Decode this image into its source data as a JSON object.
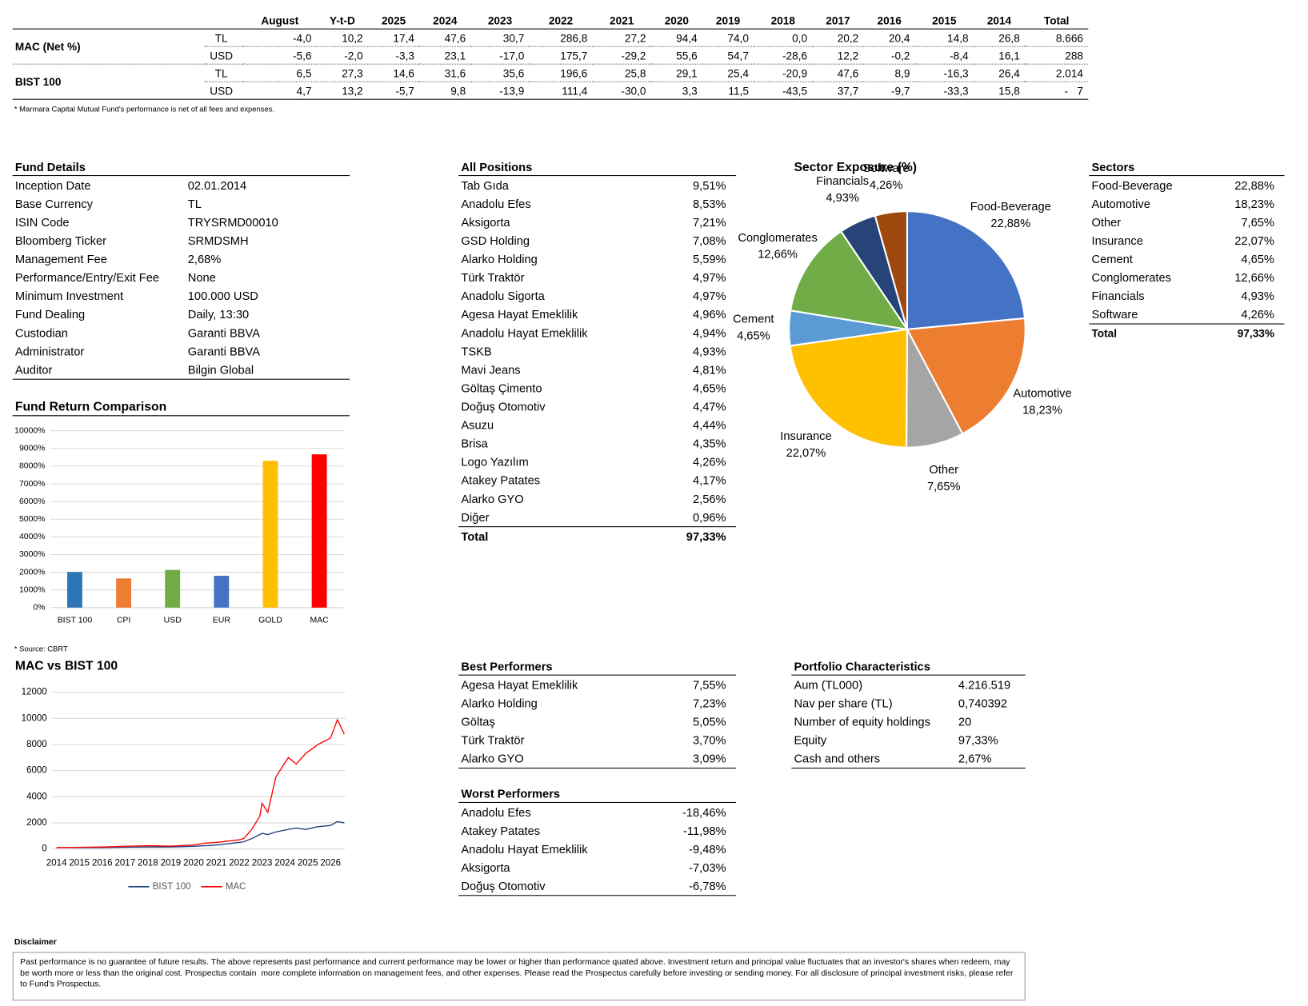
{
  "performance": {
    "columns": [
      "August",
      "Y-t-D",
      "2025",
      "2024",
      "2023",
      "2022",
      "2021",
      "2020",
      "2019",
      "2018",
      "2017",
      "2016",
      "2015",
      "2014",
      "Total"
    ],
    "groups": [
      {
        "name": "MAC (Net %)",
        "rows": [
          {
            "currency": "TL",
            "values": [
              "-4,0",
              "10,2",
              "17,4",
              "47,6",
              "30,7",
              "286,8",
              "27,2",
              "94,4",
              "74,0",
              "0,0",
              "20,2",
              "20,4",
              "14,8",
              "26,8",
              "8.666"
            ]
          },
          {
            "currency": "USD",
            "values": [
              "-5,6",
              "-2,0",
              "-3,3",
              "23,1",
              "-17,0",
              "175,7",
              "-29,2",
              "55,6",
              "54,7",
              "-28,6",
              "12,2",
              "-0,2",
              "-8,4",
              "16,1",
              "288"
            ]
          }
        ]
      },
      {
        "name": "BIST 100",
        "rows": [
          {
            "currency": "TL",
            "values": [
              "6,5",
              "27,3",
              "14,6",
              "31,6",
              "35,6",
              "196,6",
              "25,8",
              "29,1",
              "25,4",
              "-20,9",
              "47,6",
              "8,9",
              "-16,3",
              "26,4",
              "2.014"
            ]
          },
          {
            "currency": "USD",
            "values": [
              "4,7",
              "13,2",
              "-5,7",
              "9,8",
              "-13,9",
              "111,4",
              "-30,0",
              "3,3",
              "11,5",
              "-43,5",
              "37,7",
              "-9,7",
              "-33,3",
              "15,8",
              "-   7"
            ]
          }
        ]
      }
    ],
    "note": "* Marmara Capital Mutual Fund's performance is net of all fees and expenses."
  },
  "fund_details": {
    "title": "Fund Details",
    "rows": [
      [
        "Inception Date",
        "02.01.2014"
      ],
      [
        "Base Currency",
        "TL"
      ],
      [
        "ISIN Code",
        "TRYSRMD00010"
      ],
      [
        "Bloomberg Ticker",
        "SRMDSMH"
      ],
      [
        "Management Fee",
        "2,68%"
      ],
      [
        "Performance/Entry/Exit Fee",
        "None"
      ],
      [
        "Minimum Investment",
        "100.000 USD"
      ],
      [
        "Fund Dealing",
        "Daily, 13:30"
      ],
      [
        "Custodian",
        "Garanti BBVA"
      ],
      [
        "Administrator",
        "Garanti BBVA"
      ],
      [
        "Auditor",
        "Bilgin Global"
      ]
    ]
  },
  "all_positions": {
    "title": "All Positions",
    "rows": [
      [
        "Tab Gıda",
        "9,51%"
      ],
      [
        "Anadolu Efes",
        "8,53%"
      ],
      [
        "Aksigorta",
        "7,21%"
      ],
      [
        "GSD Holding",
        "7,08%"
      ],
      [
        "Alarko Holding",
        "5,59%"
      ],
      [
        "Türk Traktör",
        "4,97%"
      ],
      [
        "Anadolu Sigorta",
        "4,97%"
      ],
      [
        "Agesa Hayat Emeklilik",
        "4,96%"
      ],
      [
        "Anadolu Hayat Emeklilik",
        "4,94%"
      ],
      [
        "TSKB",
        "4,93%"
      ],
      [
        "Mavi Jeans",
        "4,81%"
      ],
      [
        "Göltaş Çimento",
        "4,65%"
      ],
      [
        "Doğuş Otomotiv",
        "4,47%"
      ],
      [
        "Asuzu",
        "4,44%"
      ],
      [
        "Brisa",
        "4,35%"
      ],
      [
        "Logo Yazılım",
        "4,26%"
      ],
      [
        "Atakey Patates",
        "4,17%"
      ],
      [
        "Alarko GYO",
        "2,56%"
      ],
      [
        "Diğer",
        "0,96%"
      ]
    ],
    "total": [
      "Total",
      "97,33%"
    ]
  },
  "sectors": {
    "title": "Sectors",
    "rows": [
      [
        "Food-Beverage",
        "22,88%"
      ],
      [
        "Automotive",
        "18,23%"
      ],
      [
        "Other",
        "7,65%"
      ],
      [
        "Insurance",
        "22,07%"
      ],
      [
        "Cement",
        "4,65%"
      ],
      [
        "Conglomerates",
        "12,66%"
      ],
      [
        "Financials",
        "4,93%"
      ],
      [
        "Software",
        "4,26%"
      ]
    ],
    "total": [
      "Total",
      "97,33%"
    ]
  },
  "best_performers": {
    "title": "Best Performers",
    "rows": [
      [
        "Agesa Hayat Emeklilik",
        "7,55%"
      ],
      [
        "Alarko Holding",
        "7,23%"
      ],
      [
        "Göltaş",
        "5,05%"
      ],
      [
        "Türk Traktör",
        "3,70%"
      ],
      [
        "Alarko GYO",
        "3,09%"
      ]
    ]
  },
  "worst_performers": {
    "title": "Worst Performers",
    "rows": [
      [
        "Anadolu Efes",
        "-18,46%"
      ],
      [
        "Atakey Patates",
        "-11,98%"
      ],
      [
        "Anadolu Hayat Emeklilik",
        "-9,48%"
      ],
      [
        "Aksigorta",
        "-7,03%"
      ],
      [
        "Doğuş Otomotiv",
        "-6,78%"
      ]
    ]
  },
  "portfolio_characteristics": {
    "title": "Portfolio Characteristics",
    "rows": [
      [
        "Aum (TL000)",
        "4.216.519"
      ],
      [
        "Nav per share (TL)",
        "0,740392"
      ],
      [
        "Number of equity holdings",
        "20"
      ],
      [
        "Equity",
        "97,33%"
      ],
      [
        "Cash and others",
        "2,67%"
      ]
    ]
  },
  "source_note": "* Source: CBRT",
  "disclaimer": {
    "title": "Disclaimer",
    "text": "Past performance is no guarantee of future results. The above represents past performance and current performance may be lower or higher than performance quated above. Investment return and principal value fluctuates that an investor's shares when redeem, may be worth more or less than the original cost. Prospectus contain  more complete information on management fees, and other expenses. Please read the Prospectus carefully before investing or sending money. For all disclosure of principal investment risks, please refer to Fund's Prospectus."
  },
  "chart_data": [
    {
      "type": "bar",
      "title": "Fund Return Comparison",
      "categories": [
        "BIST 100",
        "CPI",
        "USD",
        "EUR",
        "GOLD",
        "MAC"
      ],
      "values": [
        2014,
        1650,
        2130,
        1800,
        8300,
        8666
      ],
      "colors": [
        "#2e75b6",
        "#ed7d31",
        "#70ad47",
        "#4472c4",
        "#ffc000",
        "#ff0000"
      ],
      "ylim": [
        0,
        10000
      ],
      "yticks": [
        {
          "value": 0,
          "label": "0%"
        },
        {
          "value": 1000,
          "label": "1000%"
        },
        {
          "value": 2000,
          "label": "2000%"
        },
        {
          "value": 3000,
          "label": "3000%"
        },
        {
          "value": 4000,
          "label": "4000%"
        },
        {
          "value": 5000,
          "label": "5000%"
        },
        {
          "value": 6000,
          "label": "6000%"
        },
        {
          "value": 7000,
          "label": "7000%"
        },
        {
          "value": 8000,
          "label": "8000%"
        },
        {
          "value": 9000,
          "label": "9000%"
        },
        {
          "value": 10000,
          "label": "10000%"
        }
      ],
      "grid": true
    },
    {
      "type": "pie",
      "title": "Sector Exposure (%)",
      "categories": [
        "Food-Beverage",
        "Automotive",
        "Other",
        "Insurance",
        "Cement",
        "Conglomerates",
        "Financials",
        "Software"
      ],
      "values": [
        22.88,
        18.23,
        7.65,
        22.07,
        4.65,
        12.66,
        4.93,
        4.26
      ],
      "value_labels": [
        "22,88%",
        "18,23%",
        "7,65%",
        "22,07%",
        "4,65%",
        "12,66%",
        "4,93%",
        "4,26%"
      ],
      "colors": [
        "#4472c4",
        "#ed7d31",
        "#a5a5a5",
        "#ffc000",
        "#5b9bd5",
        "#70ad47",
        "#264478",
        "#9e480e"
      ]
    },
    {
      "type": "line",
      "title": "MAC vs BIST 100",
      "x": [
        2014,
        2015,
        2016,
        2017,
        2018,
        2019,
        2020,
        2020.5,
        2021,
        2021.5,
        2022,
        2022.2,
        2022.55,
        2022.9,
        2023,
        2023.25,
        2023.6,
        2024.15,
        2024.5,
        2024.9,
        2025.45,
        2026,
        2026.3,
        2026.6
      ],
      "series": [
        {
          "name": "BIST 100",
          "color": "#1f3e7a",
          "values": [
            100,
            100,
            100,
            130,
            150,
            150,
            200,
            250,
            300,
            400,
            500,
            550,
            800,
            1100,
            1200,
            1100,
            1300,
            1500,
            1600,
            1500,
            1700,
            1800,
            2100,
            2000
          ]
        },
        {
          "name": "MAC",
          "color": "#ff0000",
          "values": [
            100,
            130,
            150,
            200,
            250,
            220,
            300,
            450,
            500,
            600,
            700,
            800,
            1500,
            2500,
            3500,
            2800,
            5500,
            7000,
            6500,
            7300,
            8000,
            8500,
            9900,
            8800
          ]
        }
      ],
      "xlim": [
        2013.8,
        2026.65
      ],
      "xticks": [
        2014,
        2015,
        2016,
        2017,
        2018,
        2019,
        2020,
        2021,
        2022,
        2023,
        2024,
        2025,
        2026
      ],
      "ylim": [
        0,
        12000
      ],
      "yticks": [
        0,
        2000,
        4000,
        6000,
        8000,
        10000,
        12000
      ],
      "grid": true,
      "legend": "bottom"
    }
  ]
}
